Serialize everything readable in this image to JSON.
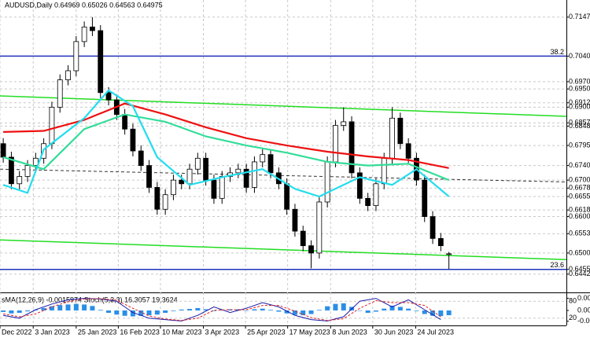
{
  "chart_data": [
    {
      "type": "candlestick",
      "title": "AUDUSD,Daily  0.64969 0.65026 0.64563 0.64975",
      "open": [
        0.68,
        0.6763,
        0.669,
        0.671,
        0.674,
        0.676,
        0.68,
        0.69,
        0.6975,
        0.7,
        0.708,
        0.712,
        0.711,
        0.694,
        0.692,
        0.688,
        0.684,
        0.678,
        0.674,
        0.668,
        0.662,
        0.666,
        0.67,
        0.669,
        0.673,
        0.676,
        0.67,
        0.665,
        0.671,
        0.672,
        0.673,
        0.668,
        0.675,
        0.677,
        0.672,
        0.669,
        0.662,
        0.656,
        0.652,
        0.65,
        0.664,
        0.675,
        0.685,
        0.686,
        0.672,
        0.665,
        0.663,
        0.669,
        0.676,
        0.687,
        0.68,
        0.676,
        0.67,
        0.66,
        0.654,
        0.6497
      ],
      "high": [
        0.6815,
        0.6778,
        0.6725,
        0.6755,
        0.6775,
        0.6815,
        0.6915,
        0.699,
        0.7015,
        0.7095,
        0.7135,
        0.7147,
        0.7125,
        0.6955,
        0.6935,
        0.6895,
        0.6855,
        0.6795,
        0.6755,
        0.6695,
        0.6675,
        0.6715,
        0.6715,
        0.6745,
        0.6775,
        0.6775,
        0.6715,
        0.6725,
        0.6735,
        0.6745,
        0.6745,
        0.6765,
        0.6785,
        0.6785,
        0.6735,
        0.6705,
        0.6635,
        0.6575,
        0.6535,
        0.6655,
        0.6765,
        0.6865,
        0.69,
        0.6875,
        0.6735,
        0.6665,
        0.6705,
        0.6775,
        0.69,
        0.6885,
        0.6815,
        0.6775,
        0.6715,
        0.6615,
        0.6555,
        0.6503
      ],
      "low": [
        0.6748,
        0.6675,
        0.6675,
        0.6695,
        0.6725,
        0.6745,
        0.6785,
        0.6885,
        0.696,
        0.6985,
        0.7065,
        0.7095,
        0.6925,
        0.6905,
        0.6865,
        0.6825,
        0.6765,
        0.6725,
        0.6665,
        0.6605,
        0.6605,
        0.6645,
        0.6675,
        0.6675,
        0.6715,
        0.6685,
        0.6635,
        0.6635,
        0.6695,
        0.6705,
        0.6665,
        0.6665,
        0.6735,
        0.6705,
        0.6675,
        0.6605,
        0.6545,
        0.6505,
        0.6458,
        0.6485,
        0.6625,
        0.6735,
        0.6835,
        0.6705,
        0.6635,
        0.6615,
        0.6615,
        0.6675,
        0.6745,
        0.6785,
        0.6745,
        0.6685,
        0.6585,
        0.6525,
        0.6505,
        0.6456
      ],
      "close": [
        0.6763,
        0.669,
        0.671,
        0.674,
        0.676,
        0.68,
        0.69,
        0.6975,
        0.7,
        0.708,
        0.712,
        0.711,
        0.694,
        0.692,
        0.688,
        0.684,
        0.678,
        0.674,
        0.668,
        0.662,
        0.666,
        0.67,
        0.669,
        0.673,
        0.676,
        0.67,
        0.665,
        0.671,
        0.672,
        0.673,
        0.668,
        0.675,
        0.677,
        0.672,
        0.669,
        0.662,
        0.656,
        0.652,
        0.65,
        0.664,
        0.675,
        0.685,
        0.686,
        0.672,
        0.665,
        0.663,
        0.669,
        0.676,
        0.687,
        0.68,
        0.676,
        0.67,
        0.66,
        0.654,
        0.652,
        0.6498
      ],
      "up_color": "#ffffff",
      "down_color": "#000000",
      "edge_color": "#000000",
      "lines": [
        {
          "color": "#ee1111",
          "x": [
            0,
            5,
            10,
            15,
            20,
            25,
            30,
            35,
            40,
            45,
            50,
            55
          ],
          "values": [
            0.6832,
            0.6835,
            0.6865,
            0.691,
            0.688,
            0.6845,
            0.6815,
            0.6795,
            0.6778,
            0.6765,
            0.6755,
            0.6733
          ]
        },
        {
          "color": "#33dd99",
          "x": [
            0,
            5,
            10,
            15,
            20,
            25,
            30,
            35,
            40,
            45,
            50,
            55
          ],
          "values": [
            0.6763,
            0.673,
            0.684,
            0.688,
            0.686,
            0.682,
            0.6795,
            0.6775,
            0.675,
            0.674,
            0.6745,
            0.67
          ]
        },
        {
          "color": "#22ddee",
          "x": [
            0,
            3,
            5,
            10,
            13,
            16,
            19,
            23,
            27,
            32,
            36,
            39,
            44,
            48,
            51,
            55
          ],
          "values": [
            0.6687,
            0.6665,
            0.6784,
            0.687,
            0.6946,
            0.6903,
            0.6763,
            0.6687,
            0.6708,
            0.673,
            0.6676,
            0.6655,
            0.6708,
            0.6687,
            0.673,
            0.6655
          ]
        }
      ],
      "trendlines": [
        {
          "color": "#22dd22",
          "dashed": false,
          "x": [
            -0.4,
            69.5
          ],
          "values": [
            0.6931,
            0.6875
          ]
        },
        {
          "color": "#22dd22",
          "dashed": false,
          "x": [
            -0.4,
            69.5
          ],
          "values": [
            0.6536,
            0.6482
          ]
        },
        {
          "color": "#333333",
          "dashed": true,
          "x": [
            -0.4,
            69.5
          ],
          "values": [
            0.673,
            0.6695
          ]
        }
      ],
      "hlines": [
        {
          "value": 0.704,
          "label": "38.2",
          "color": "#2233bb"
        },
        {
          "value": 0.6455,
          "label": "23.6",
          "color": "#2233bb"
        }
      ],
      "xlim": [
        -0.4,
        69.5
      ],
      "xticks": [
        {
          "value": -0.4,
          "label": "Dec 2022"
        },
        {
          "value": 3.7,
          "label": "3 Jan 2023"
        },
        {
          "value": 9.0,
          "label": "25 Jan 2023"
        },
        {
          "value": 14.2,
          "label": "16 Feb 2023"
        },
        {
          "value": 19.4,
          "label": "10 Mar 2023"
        },
        {
          "value": 24.7,
          "label": "3 Apr 2023"
        },
        {
          "value": 29.9,
          "label": "25 Apr 2023"
        },
        {
          "value": 35.1,
          "label": "17 May 2023"
        },
        {
          "value": 40.4,
          "label": "8 Jun 2023"
        },
        {
          "value": 45.6,
          "label": "30 Jun 2023"
        },
        {
          "value": 50.9,
          "label": "24 Jul 2023"
        }
      ],
      "ylim": [
        0.6392,
        0.7194
      ],
      "yticks": [
        0.7147,
        {
          "value": 0.704,
          "label": "0.7040"
        },
        {
          "value": 0.697,
          "label": "0.6970"
        },
        {
          "value": 0.695,
          "label": "0.6950"
        },
        0.6912,
        {
          "value": 0.69,
          "label": "0.6900"
        },
        0.6857,
        0.6848,
        0.6795,
        {
          "value": 0.674,
          "label": "0.6740"
        },
        {
          "value": 0.67,
          "label": "0.6700"
        },
        0.6678,
        0.6655,
        0.6618,
        {
          "value": 0.66,
          "label": "0.6600"
        },
        0.6553,
        {
          "value": 0.65,
          "label": "0.6500"
        },
        0.6455,
        0.6442
      ],
      "grid": true
    },
    {
      "type": "oscillator",
      "title": "sMA(12,26,9) -0.0015974  Stoch(5,3,3) 16.3057 19.3624",
      "series": [
        {
          "color": "#2a8ee8",
          "values": [
            -0.0005,
            -0.001,
            -0.0008,
            -0.0003,
            0.0002,
            0.0008,
            0.0014,
            0.0018,
            0.002,
            0.0022,
            0.002,
            0.0015,
            0.0002,
            -0.0008,
            -0.0014,
            -0.0018,
            -0.002,
            -0.0018,
            -0.0016,
            -0.0014,
            -0.0008,
            -0.0002,
            0.0003,
            0.0005,
            0.0008,
            0.0004,
            -0.0002,
            0.0002,
            0.0004,
            0.0004,
            0.0,
            0.0004,
            0.0006,
            0.0002,
            -0.0004,
            -0.001,
            -0.0015,
            -0.0016,
            -0.0012,
            0.0002,
            0.0014,
            0.0022,
            0.0024,
            0.0012,
            0.0,
            -0.0008,
            -0.0004,
            0.0006,
            0.0016,
            0.0012,
            0.0006,
            -0.0002,
            -0.0012,
            -0.0018,
            -0.0019,
            -0.0016
          ]
        },
        {
          "color": "#1a1aa8",
          "axis": "y2",
          "dashed": false,
          "x": [
            0,
            2,
            4,
            6,
            8,
            10,
            12,
            14,
            16,
            18,
            20,
            22,
            24,
            26,
            28,
            30,
            32,
            34,
            36,
            38,
            40,
            42,
            44,
            46,
            48,
            50,
            52,
            54
          ],
          "values": [
            30,
            20,
            50,
            70,
            85,
            90,
            88,
            80,
            40,
            20,
            15,
            10,
            30,
            60,
            40,
            55,
            75,
            60,
            30,
            15,
            10,
            25,
            80,
            90,
            60,
            85,
            50,
            15
          ]
        },
        {
          "color": "#dd2222",
          "axis": "y2",
          "dashed": true,
          "x": [
            0,
            2,
            4,
            6,
            8,
            10,
            12,
            14,
            16,
            18,
            20,
            22,
            24,
            26,
            28,
            30,
            32,
            34,
            36,
            38,
            40,
            42,
            44,
            46,
            48,
            50,
            52,
            54
          ],
          "values": [
            35,
            25,
            35,
            60,
            78,
            88,
            89,
            84,
            55,
            28,
            17,
            12,
            20,
            48,
            50,
            50,
            65,
            65,
            45,
            22,
            12,
            18,
            55,
            82,
            75,
            75,
            65,
            25
          ]
        }
      ],
      "xlim": [
        -0.4,
        69.5
      ],
      "ylim": [
        -0.0045,
        0.005
      ],
      "yticks": [
        0.0041,
        {
          "value": 0,
          "label": "0.00"
        },
        -0.0036
      ],
      "y2lim": [
        0,
        100
      ],
      "y2ticks": [
        80,
        20
      ]
    }
  ]
}
